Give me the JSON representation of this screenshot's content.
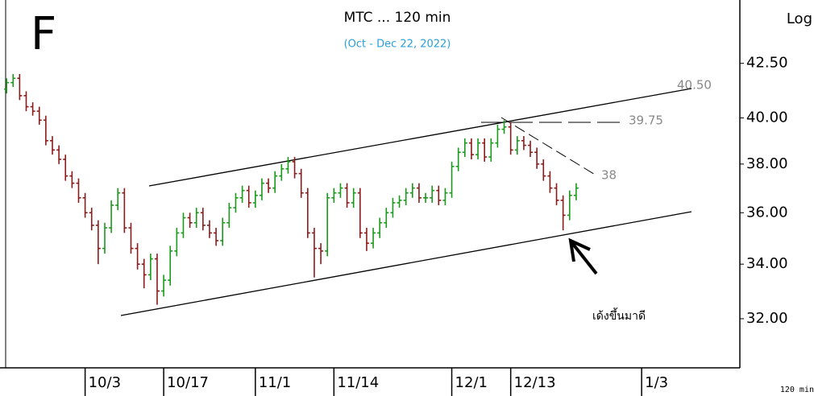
{
  "chart_data": {
    "type": "ohlc",
    "letter": "F",
    "title": "MTC ... 120 min",
    "subtitle": "(Oct - Dec 22, 2022)",
    "scale_label": "Log",
    "log_scale": true,
    "footer": "120 min",
    "up_color": "#1a9a1a",
    "down_color": "#8b1a1a",
    "categories": [
      null,
      null,
      null,
      null,
      null,
      null,
      null,
      null,
      null,
      null,
      null,
      null,
      "10/3",
      null,
      null,
      null,
      null,
      null,
      null,
      null,
      null,
      null,
      null,
      null,
      "10/17",
      null,
      null,
      null,
      null,
      null,
      null,
      null,
      null,
      null,
      null,
      null,
      null,
      null,
      "11/1",
      null,
      null,
      null,
      null,
      null,
      null,
      null,
      null,
      null,
      null,
      null,
      "11/14",
      null,
      null,
      null,
      null,
      null,
      null,
      null,
      null,
      null,
      null,
      null,
      null,
      null,
      null,
      null,
      null,
      null,
      "12/1",
      null,
      null,
      null,
      null,
      null,
      null,
      null,
      null,
      "12/13",
      null,
      null,
      null,
      null,
      null,
      null,
      null,
      null,
      null,
      null,
      null,
      null,
      null,
      null,
      null,
      null,
      null,
      null,
      null,
      "1/3"
    ],
    "open": [
      41.3,
      41.6,
      41.8,
      41.0,
      40.5,
      40.3,
      39.9,
      39.0,
      38.6,
      38.2,
      37.5,
      37.2,
      36.6,
      36.0,
      35.5,
      34.6,
      35.4,
      36.3,
      36.8,
      35.4,
      34.6,
      34.0,
      33.6,
      34.2,
      33.0,
      33.4,
      34.5,
      35.2,
      35.8,
      35.6,
      36.0,
      35.5,
      35.2,
      34.9,
      35.6,
      36.2,
      36.6,
      36.9,
      36.4,
      36.7,
      37.2,
      37.0,
      37.5,
      37.8,
      38.1,
      37.6,
      36.8,
      35.2,
      34.6,
      34.5,
      36.6,
      36.8,
      37.0,
      36.4,
      36.8,
      35.2,
      34.8,
      35.2,
      35.6,
      36.0,
      36.4,
      36.5,
      36.8,
      37.0,
      36.6,
      36.6,
      36.9,
      36.5,
      36.8,
      37.9,
      38.5,
      38.9,
      38.4,
      38.9,
      38.3,
      38.9,
      39.5,
      39.6,
      38.6,
      39.0,
      38.8,
      38.5,
      38.0,
      37.5,
      37.0,
      36.5,
      35.9,
      36.7,
      null,
      null,
      null,
      null,
      null,
      null,
      null,
      null,
      null,
      null
    ],
    "high": [
      41.8,
      42.0,
      42.0,
      41.2,
      40.7,
      40.5,
      40.1,
      39.2,
      38.8,
      38.4,
      37.7,
      37.4,
      36.8,
      36.2,
      35.7,
      35.6,
      36.5,
      37.0,
      37.0,
      35.6,
      34.8,
      34.2,
      34.4,
      34.4,
      33.6,
      34.7,
      35.4,
      36.0,
      36.0,
      36.2,
      36.2,
      35.7,
      35.4,
      35.8,
      36.4,
      36.8,
      37.1,
      37.1,
      36.9,
      37.4,
      37.4,
      37.7,
      38.0,
      38.3,
      38.3,
      37.8,
      37.0,
      35.4,
      34.8,
      36.8,
      37.0,
      37.2,
      37.2,
      37.0,
      37.0,
      35.4,
      35.4,
      35.8,
      36.2,
      36.6,
      36.7,
      37.0,
      37.2,
      37.2,
      36.8,
      37.1,
      37.1,
      37.0,
      38.1,
      38.7,
      39.1,
      39.1,
      39.1,
      39.1,
      39.1,
      39.7,
      39.9,
      39.8,
      39.2,
      39.2,
      39.0,
      38.7,
      38.2,
      37.7,
      37.2,
      36.7,
      36.9,
      37.2,
      null,
      null,
      null,
      null,
      null,
      null,
      null,
      null,
      null,
      null
    ],
    "low": [
      41.1,
      41.4,
      40.8,
      40.3,
      40.1,
      39.7,
      38.8,
      38.4,
      38.0,
      37.3,
      37.0,
      36.4,
      35.8,
      35.3,
      34.0,
      34.4,
      35.2,
      36.1,
      35.2,
      34.4,
      33.8,
      33.1,
      33.4,
      32.5,
      32.8,
      33.2,
      34.3,
      35.0,
      35.4,
      35.4,
      35.3,
      35.0,
      34.7,
      34.7,
      35.4,
      36.0,
      36.4,
      36.2,
      36.2,
      36.5,
      36.8,
      36.8,
      37.3,
      37.6,
      37.4,
      36.6,
      35.0,
      33.5,
      34.0,
      34.3,
      36.4,
      36.6,
      36.2,
      36.2,
      35.0,
      34.5,
      34.6,
      35.0,
      35.4,
      35.8,
      36.2,
      36.3,
      36.6,
      36.4,
      36.4,
      36.4,
      36.3,
      36.3,
      36.6,
      37.7,
      38.3,
      38.2,
      38.2,
      38.1,
      38.1,
      38.7,
      39.3,
      38.4,
      38.4,
      38.6,
      38.3,
      37.8,
      37.3,
      36.8,
      36.3,
      35.3,
      35.7,
      36.5,
      null,
      null,
      null,
      null,
      null,
      null,
      null,
      null,
      null,
      null
    ],
    "close": [
      41.6,
      41.8,
      41.0,
      40.5,
      40.3,
      39.9,
      39.0,
      38.6,
      38.2,
      37.5,
      37.2,
      36.6,
      36.0,
      35.5,
      34.6,
      35.4,
      36.3,
      36.8,
      35.4,
      34.6,
      34.0,
      33.6,
      34.2,
      33.0,
      33.4,
      34.5,
      35.2,
      35.8,
      35.6,
      36.0,
      35.5,
      35.2,
      34.9,
      35.6,
      36.2,
      36.6,
      36.9,
      36.4,
      36.7,
      37.2,
      37.0,
      37.5,
      37.8,
      38.1,
      37.6,
      36.8,
      35.2,
      34.6,
      34.5,
      36.6,
      36.8,
      37.0,
      36.4,
      36.8,
      35.2,
      34.8,
      35.2,
      35.6,
      36.0,
      36.4,
      36.5,
      36.8,
      37.0,
      36.6,
      36.6,
      36.9,
      36.5,
      36.8,
      37.9,
      38.5,
      38.9,
      38.4,
      38.9,
      38.3,
      38.9,
      39.5,
      39.6,
      38.6,
      39.0,
      38.8,
      38.5,
      38.0,
      37.5,
      37.0,
      36.5,
      35.9,
      36.7,
      37.0,
      null,
      null,
      null,
      null,
      null,
      null,
      null,
      null,
      null,
      null
    ],
    "xlim": [
      -1,
      112
    ],
    "ylim": [
      30.3,
      45.6
    ],
    "yticks": [
      {
        "value": 32,
        "label": "32.00"
      },
      {
        "value": 34,
        "label": "34.00"
      },
      {
        "value": 36,
        "label": "36.00"
      },
      {
        "value": 38,
        "label": "38.00"
      },
      {
        "value": 40,
        "label": "40.00"
      },
      {
        "value": 42.5,
        "label": "42.50"
      }
    ],
    "annotations": [
      "40.50",
      "39.75",
      "38",
      "เด้งขึ้นมาดี"
    ]
  }
}
